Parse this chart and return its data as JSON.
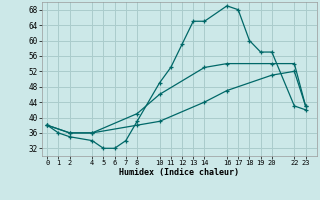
{
  "xlabel": "Humidex (Indice chaleur)",
  "background_color": "#cce8e8",
  "grid_color": "#aacccc",
  "line_color": "#006868",
  "x_ticks": [
    0,
    1,
    2,
    4,
    5,
    6,
    7,
    8,
    10,
    11,
    12,
    13,
    14,
    16,
    17,
    18,
    19,
    20,
    22,
    23
  ],
  "y_ticks": [
    32,
    36,
    40,
    44,
    48,
    52,
    56,
    60,
    64,
    68
  ],
  "ylim": [
    30,
    70
  ],
  "xlim": [
    -0.5,
    24
  ],
  "line1_x": [
    0,
    1,
    2,
    4,
    5,
    6,
    7,
    8,
    10,
    11,
    12,
    13,
    14,
    16,
    17,
    18,
    19,
    20,
    22,
    23
  ],
  "line1_y": [
    38,
    36,
    35,
    34,
    32,
    32,
    34,
    39,
    49,
    53,
    59,
    65,
    65,
    69,
    68,
    60,
    57,
    57,
    43,
    42
  ],
  "line2_x": [
    0,
    2,
    4,
    8,
    10,
    14,
    16,
    20,
    22,
    23
  ],
  "line2_y": [
    38,
    36,
    36,
    41,
    46,
    53,
    54,
    54,
    54,
    43
  ],
  "line3_x": [
    0,
    2,
    4,
    8,
    10,
    14,
    16,
    20,
    22,
    23
  ],
  "line3_y": [
    38,
    36,
    36,
    38,
    39,
    44,
    47,
    51,
    52,
    43
  ]
}
